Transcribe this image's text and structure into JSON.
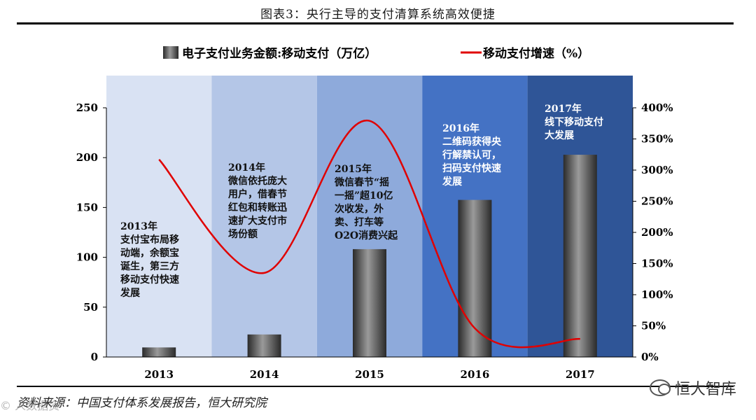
{
  "header": {
    "title": "图表3：央行主导的支付清算系统高效便捷"
  },
  "source": "资料来源：中国支付体系发展报告，恒大研究院",
  "watermark_left": "© 人数据资",
  "watermark_right": "恒大智库",
  "colors": {
    "bar": "#555555",
    "line": "#e00000",
    "band_fills": [
      "#d9e2f3",
      "#b4c6e7",
      "#8eaadb",
      "#4472c4",
      "#2f5597"
    ]
  },
  "chart_data": {
    "type": "bar",
    "categories": [
      "2013",
      "2014",
      "2015",
      "2016",
      "2017"
    ],
    "series": [
      {
        "name": "电子支付业务金额:移动支付（万亿）",
        "type": "bar",
        "axis": "left",
        "values": [
          9.6,
          22.6,
          108.2,
          157.6,
          202.9
        ]
      },
      {
        "name": "移动支付增速（%）",
        "type": "line",
        "axis": "right",
        "values": [
          317,
          135,
          379,
          46,
          29
        ]
      }
    ],
    "y_left": {
      "range": [
        0,
        250
      ],
      "ticks": [
        "0",
        "50",
        "100",
        "150",
        "200",
        "250"
      ]
    },
    "y_right": {
      "range": [
        0,
        400
      ],
      "ticks": [
        "0%",
        "50%",
        "100%",
        "150%",
        "200%",
        "250%",
        "300%",
        "350%",
        "400%"
      ]
    },
    "legend": {
      "position": "top",
      "bar_label": "电子支付业务金额:移动支付（万亿）",
      "line_label": "移动支付增速（%）"
    },
    "annotations": [
      [
        "2013年",
        "支付宝布局移",
        "动端，余额宝",
        "诞生，第三方",
        "移动支付快速",
        "发展"
      ],
      [
        "2014年",
        "微信依托庞大",
        "用户，借春节",
        "红包和转账迅",
        "速扩大支付市",
        "场份额"
      ],
      [
        "2015年",
        "微信春节“摇",
        "一摇”超10亿",
        "次收发，外",
        "卖、打车等",
        "O2O消费兴起"
      ],
      [
        "2016年",
        "二维码获得央",
        "行解禁认可，",
        "扫码支付快速",
        "发展"
      ],
      [
        "2017年",
        "线下移动支付",
        "大发展"
      ]
    ]
  }
}
